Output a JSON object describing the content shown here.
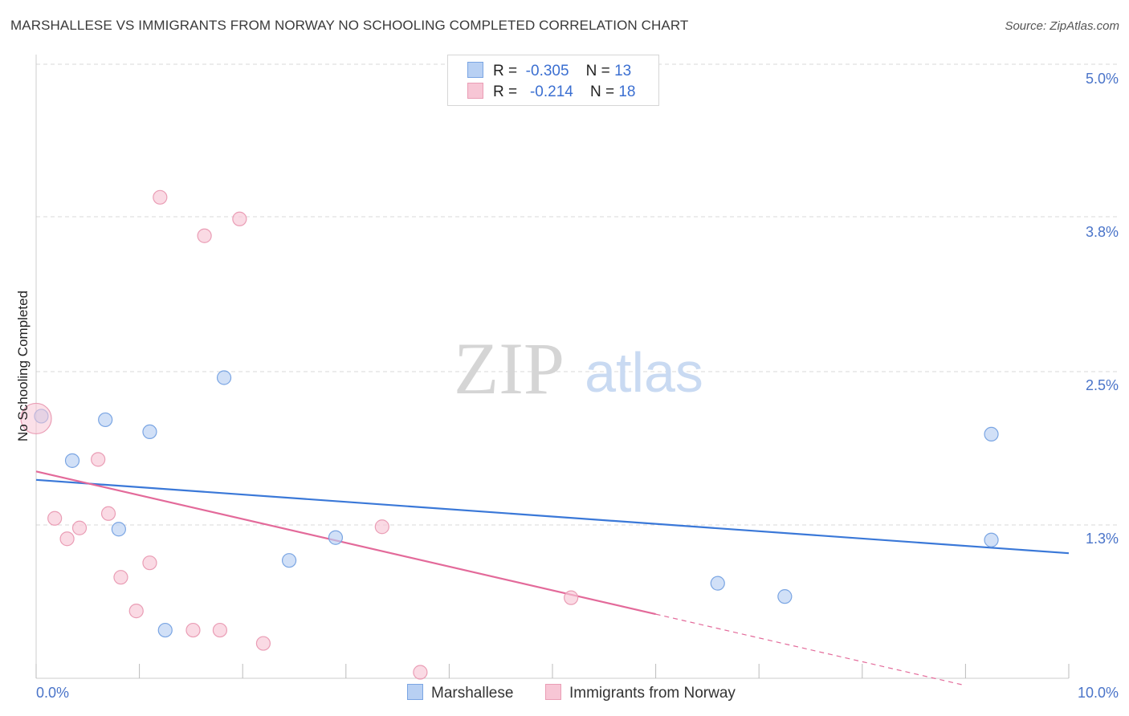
{
  "title": "MARSHALLESE VS IMMIGRANTS FROM NORWAY NO SCHOOLING COMPLETED CORRELATION CHART",
  "source": "Source: ZipAtlas.com",
  "watermark": {
    "zip": "ZIP",
    "atlas": "atlas"
  },
  "legend": {
    "rows": [
      {
        "r_label": "R =",
        "r_value": "-0.305",
        "n_label": "N =",
        "n_value": "13"
      },
      {
        "r_label": "R =",
        "r_value": "-0.214",
        "n_label": "N =",
        "n_value": "18"
      }
    ]
  },
  "colors": {
    "blue_fill": "#b8d0f3",
    "blue_stroke": "#7aa5e3",
    "blue_line": "#3a78d8",
    "pink_fill": "#f7c6d5",
    "pink_stroke": "#ea9db5",
    "pink_line": "#e36a9a",
    "grid": "#d9d9d9",
    "tick_text": "#4a74c9"
  },
  "chart_data": {
    "type": "scatter",
    "title": "MARSHALLESE VS IMMIGRANTS FROM NORWAY NO SCHOOLING COMPLETED CORRELATION CHART",
    "xlabel": "",
    "ylabel": "No Schooling Completed",
    "xlim": [
      0.0,
      10.0
    ],
    "ylim": [
      0.0,
      5.0
    ],
    "x_tick_labels": [
      "0.0%",
      "10.0%"
    ],
    "y_ticks": [
      1.3,
      2.5,
      3.8,
      5.0
    ],
    "y_tick_labels": [
      "1.3%",
      "2.5%",
      "3.8%",
      "5.0%"
    ],
    "grid": true,
    "series": [
      {
        "name": "Marshallese",
        "color": "blue",
        "points": [
          {
            "x": 0.05,
            "y": 2.18
          },
          {
            "x": 0.35,
            "y": 1.81
          },
          {
            "x": 0.67,
            "y": 2.15
          },
          {
            "x": 0.8,
            "y": 1.24
          },
          {
            "x": 1.1,
            "y": 2.05
          },
          {
            "x": 1.25,
            "y": 0.4
          },
          {
            "x": 1.82,
            "y": 2.5
          },
          {
            "x": 2.45,
            "y": 0.98
          },
          {
            "x": 2.9,
            "y": 1.17
          },
          {
            "x": 6.6,
            "y": 0.79
          },
          {
            "x": 7.25,
            "y": 0.68
          },
          {
            "x": 9.25,
            "y": 2.03
          },
          {
            "x": 9.25,
            "y": 1.15
          }
        ],
        "trend": {
          "x0": 0.0,
          "y0": 1.65,
          "x1": 10.0,
          "y1": 1.04,
          "solid_to": 10.0
        }
      },
      {
        "name": "Immigrants from Norway",
        "color": "pink",
        "points": [
          {
            "x": 0.0,
            "y": 2.16
          },
          {
            "x": 0.18,
            "y": 1.33
          },
          {
            "x": 0.3,
            "y": 1.16
          },
          {
            "x": 0.42,
            "y": 1.25
          },
          {
            "x": 0.6,
            "y": 1.82
          },
          {
            "x": 0.7,
            "y": 1.37
          },
          {
            "x": 0.82,
            "y": 0.84
          },
          {
            "x": 0.97,
            "y": 0.56
          },
          {
            "x": 1.1,
            "y": 0.96
          },
          {
            "x": 1.2,
            "y": 4.0
          },
          {
            "x": 1.52,
            "y": 0.4
          },
          {
            "x": 1.63,
            "y": 3.68
          },
          {
            "x": 1.78,
            "y": 0.4
          },
          {
            "x": 1.97,
            "y": 3.82
          },
          {
            "x": 2.2,
            "y": 0.29
          },
          {
            "x": 3.35,
            "y": 1.26
          },
          {
            "x": 3.72,
            "y": 0.05
          },
          {
            "x": 5.18,
            "y": 0.67
          }
        ],
        "trend": {
          "x0": 0.0,
          "y0": 1.72,
          "x1": 9.0,
          "y1": -0.06,
          "solid_to": 6.0
        }
      }
    ]
  }
}
